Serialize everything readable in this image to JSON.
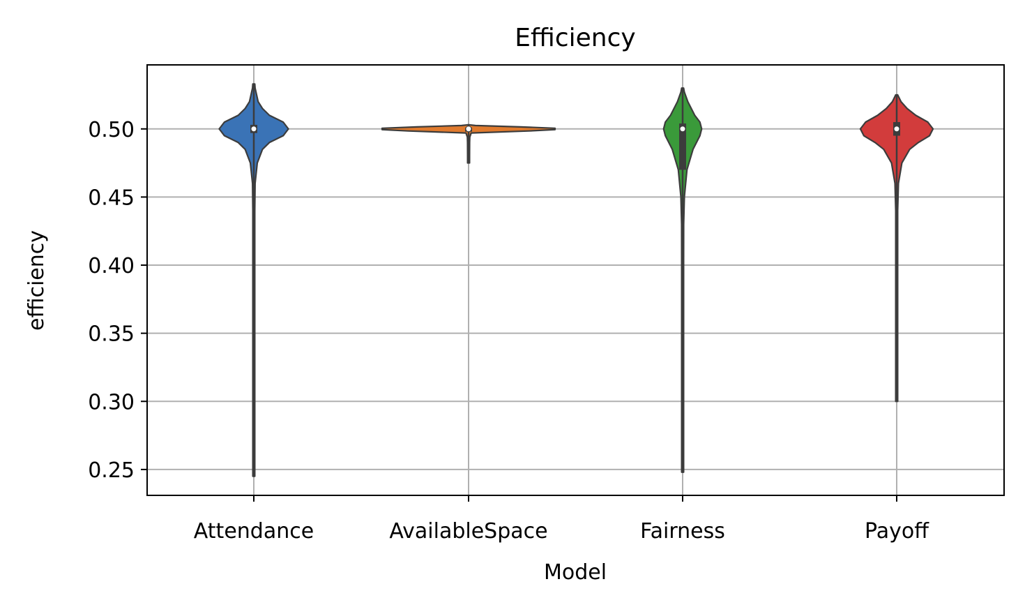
{
  "chart_data": {
    "type": "violin",
    "title": "Efficiency",
    "xlabel": "Model",
    "ylabel": "efficiency",
    "categories": [
      "Attendance",
      "AvailableSpace",
      "Fairness",
      "Payoff"
    ],
    "ylim": [
      0.231,
      0.547
    ],
    "yticks": [
      0.25,
      0.3,
      0.35,
      0.4,
      0.45,
      0.5
    ],
    "ytick_labels": [
      "0.25",
      "0.30",
      "0.35",
      "0.40",
      "0.45",
      "0.50"
    ],
    "grid": true,
    "colors": {
      "Attendance": "#3a73b6",
      "AvailableSpace": "#e07a2d",
      "Fairness": "#3a9a3a",
      "Payoff": "#d23c3c",
      "outline": "#3c3c3c",
      "grid": "#b0b0b0"
    },
    "violins": [
      {
        "name": "Attendance",
        "min": 0.245,
        "q1": 0.497,
        "median": 0.5,
        "q3": 0.503,
        "max": 0.533,
        "density": [
          [
            0.245,
            0.004
          ],
          [
            0.3,
            0.004
          ],
          [
            0.35,
            0.004
          ],
          [
            0.4,
            0.005
          ],
          [
            0.44,
            0.007
          ],
          [
            0.46,
            0.015
          ],
          [
            0.475,
            0.04
          ],
          [
            0.485,
            0.1
          ],
          [
            0.49,
            0.18
          ],
          [
            0.495,
            0.34
          ],
          [
            0.5,
            0.4
          ],
          [
            0.505,
            0.34
          ],
          [
            0.51,
            0.18
          ],
          [
            0.515,
            0.1
          ],
          [
            0.52,
            0.05
          ],
          [
            0.53,
            0.015
          ],
          [
            0.533,
            0.004
          ]
        ]
      },
      {
        "name": "AvailableSpace",
        "min": 0.475,
        "q1": 0.498,
        "median": 0.5,
        "q3": 0.501,
        "max": 0.503,
        "density": [
          [
            0.475,
            0.01
          ],
          [
            0.48,
            0.01
          ],
          [
            0.49,
            0.012
          ],
          [
            0.494,
            0.014
          ],
          [
            0.497,
            0.03
          ],
          [
            0.4985,
            0.7
          ],
          [
            0.4995,
            1.0
          ],
          [
            0.5005,
            1.0
          ],
          [
            0.5015,
            0.6
          ],
          [
            0.5025,
            0.08
          ],
          [
            0.503,
            0.01
          ]
        ]
      },
      {
        "name": "Fairness",
        "min": 0.248,
        "q1": 0.47,
        "median": 0.5,
        "q3": 0.504,
        "max": 0.53,
        "density": [
          [
            0.248,
            0.004
          ],
          [
            0.3,
            0.004
          ],
          [
            0.35,
            0.004
          ],
          [
            0.4,
            0.006
          ],
          [
            0.43,
            0.012
          ],
          [
            0.45,
            0.02
          ],
          [
            0.47,
            0.05
          ],
          [
            0.485,
            0.12
          ],
          [
            0.495,
            0.2
          ],
          [
            0.5,
            0.22
          ],
          [
            0.505,
            0.2
          ],
          [
            0.51,
            0.14
          ],
          [
            0.52,
            0.06
          ],
          [
            0.527,
            0.02
          ],
          [
            0.53,
            0.004
          ]
        ]
      },
      {
        "name": "Payoff",
        "min": 0.3,
        "q1": 0.495,
        "median": 0.5,
        "q3": 0.505,
        "max": 0.525,
        "density": [
          [
            0.3,
            0.004
          ],
          [
            0.35,
            0.004
          ],
          [
            0.4,
            0.005
          ],
          [
            0.44,
            0.008
          ],
          [
            0.46,
            0.02
          ],
          [
            0.475,
            0.06
          ],
          [
            0.485,
            0.15
          ],
          [
            0.49,
            0.25
          ],
          [
            0.495,
            0.38
          ],
          [
            0.5,
            0.42
          ],
          [
            0.505,
            0.36
          ],
          [
            0.51,
            0.22
          ],
          [
            0.515,
            0.12
          ],
          [
            0.52,
            0.05
          ],
          [
            0.525,
            0.006
          ]
        ]
      }
    ]
  }
}
